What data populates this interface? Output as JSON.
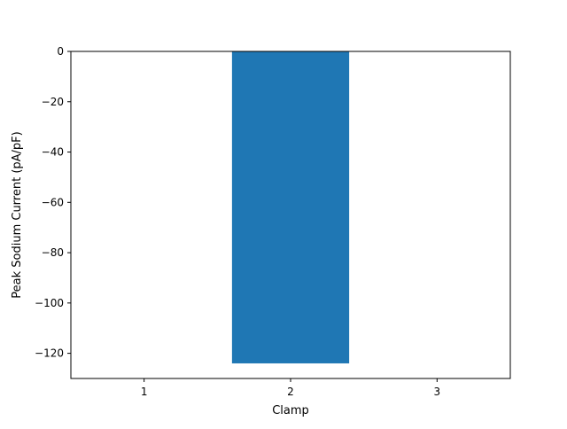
{
  "chart_data": {
    "type": "bar",
    "categories": [
      "1",
      "2",
      "3"
    ],
    "values": [
      0,
      -124,
      0
    ],
    "xlabel": "Clamp",
    "ylabel": "Peak Sodium Current (pA/pF)",
    "xlim": [
      0.5,
      3.5
    ],
    "ylim": [
      -130,
      0
    ],
    "yticks": [
      0,
      -20,
      -40,
      -60,
      -80,
      -100,
      -120
    ],
    "ytick_labels": [
      "0",
      "−20",
      "−40",
      "−60",
      "−80",
      "−100",
      "−120"
    ],
    "bar_color": "#1f77b4",
    "grid": false,
    "legend": "none"
  }
}
